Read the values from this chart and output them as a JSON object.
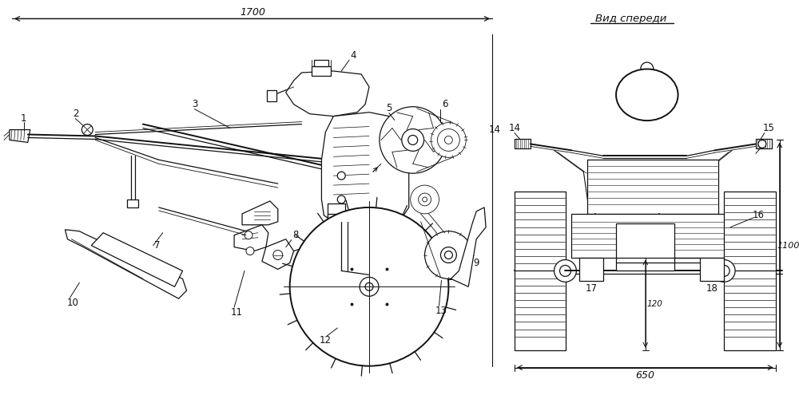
{
  "bg_color": "#ffffff",
  "line_color": "#111111",
  "title_front_view": "Вид спереди",
  "dim_1700": "1700",
  "dim_1100": "1100",
  "dim_650": "650",
  "dim_120": "120",
  "figsize": [
    10.0,
    4.95
  ],
  "dpi": 100
}
